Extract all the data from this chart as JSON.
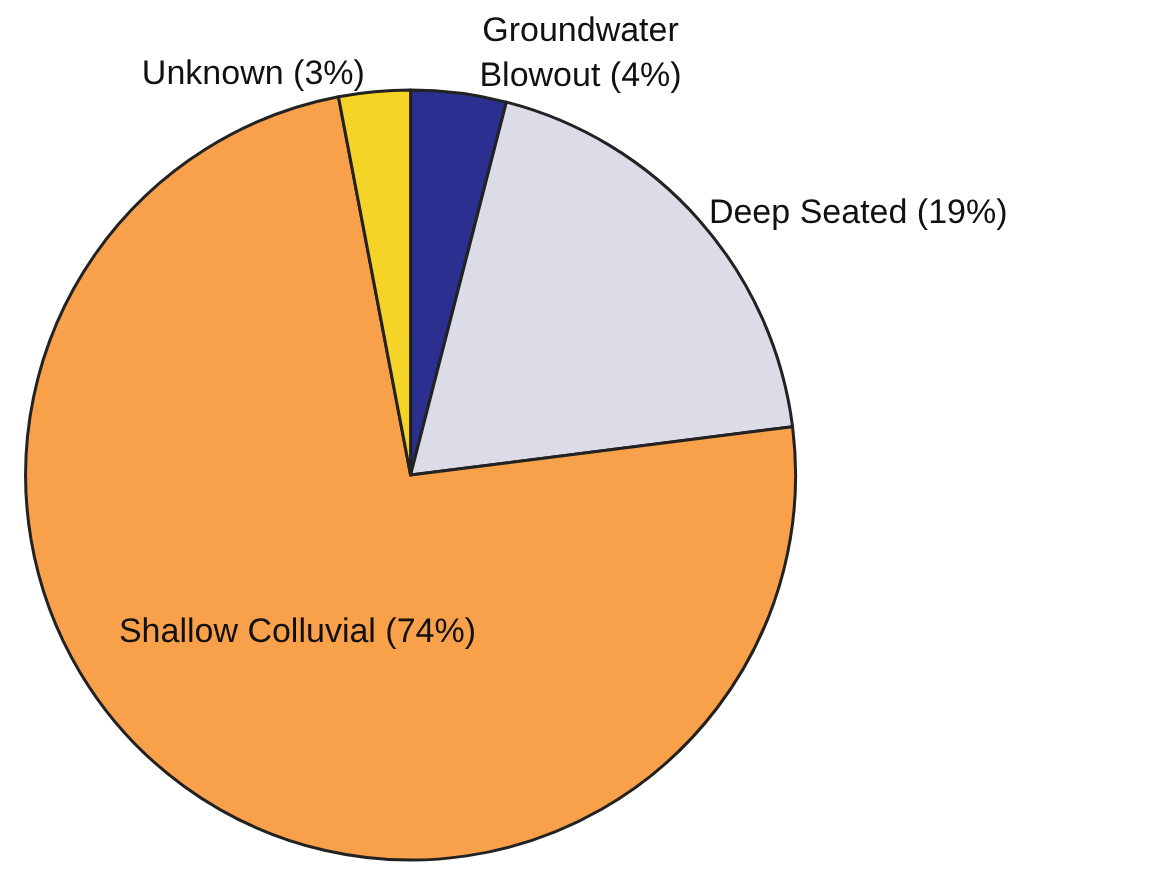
{
  "chart_data": {
    "type": "pie",
    "categories": [
      "Groundwater Blowout",
      "Deep Seated",
      "Shallow Colluvial",
      "Unknown"
    ],
    "values": [
      4,
      19,
      74,
      3
    ],
    "colors": [
      "#2b2f8f",
      "#dcdce8",
      "#f9a04a",
      "#f5d327"
    ],
    "value_labels": [
      "(4%)",
      "(19%)",
      "(74%)",
      "(3%)"
    ],
    "legend": false
  }
}
